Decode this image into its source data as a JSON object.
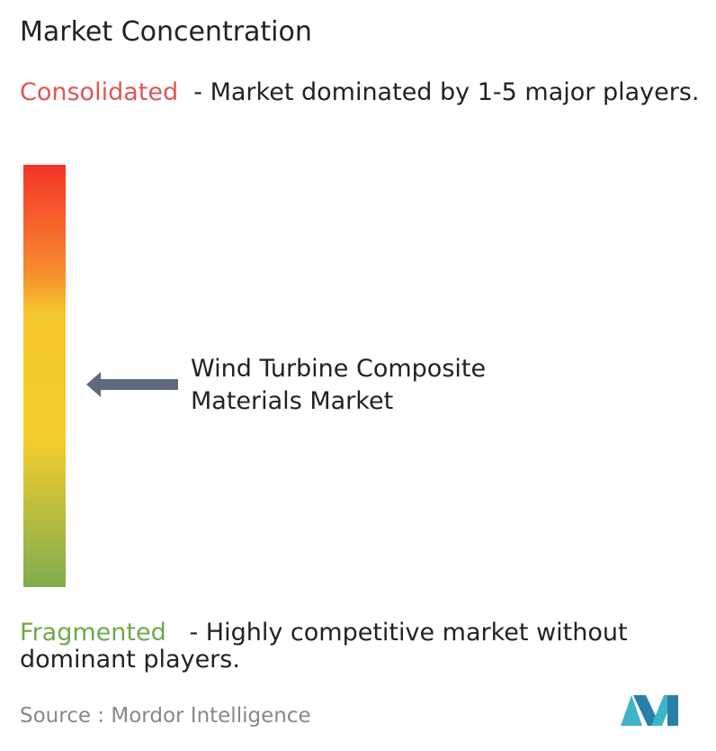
{
  "title": "Market Concentration",
  "consolidated": {
    "label": "Consolidated",
    "description": "- Market dominated by 1-5 major players."
  },
  "marker": {
    "label": "Wind Turbine Composite Materials Market"
  },
  "fragmented": {
    "label": "Fragmented",
    "description": "- Highly competitive market without dominant players."
  },
  "source": {
    "prefix": "Source :",
    "name": "Mordor Intelligence"
  }
}
